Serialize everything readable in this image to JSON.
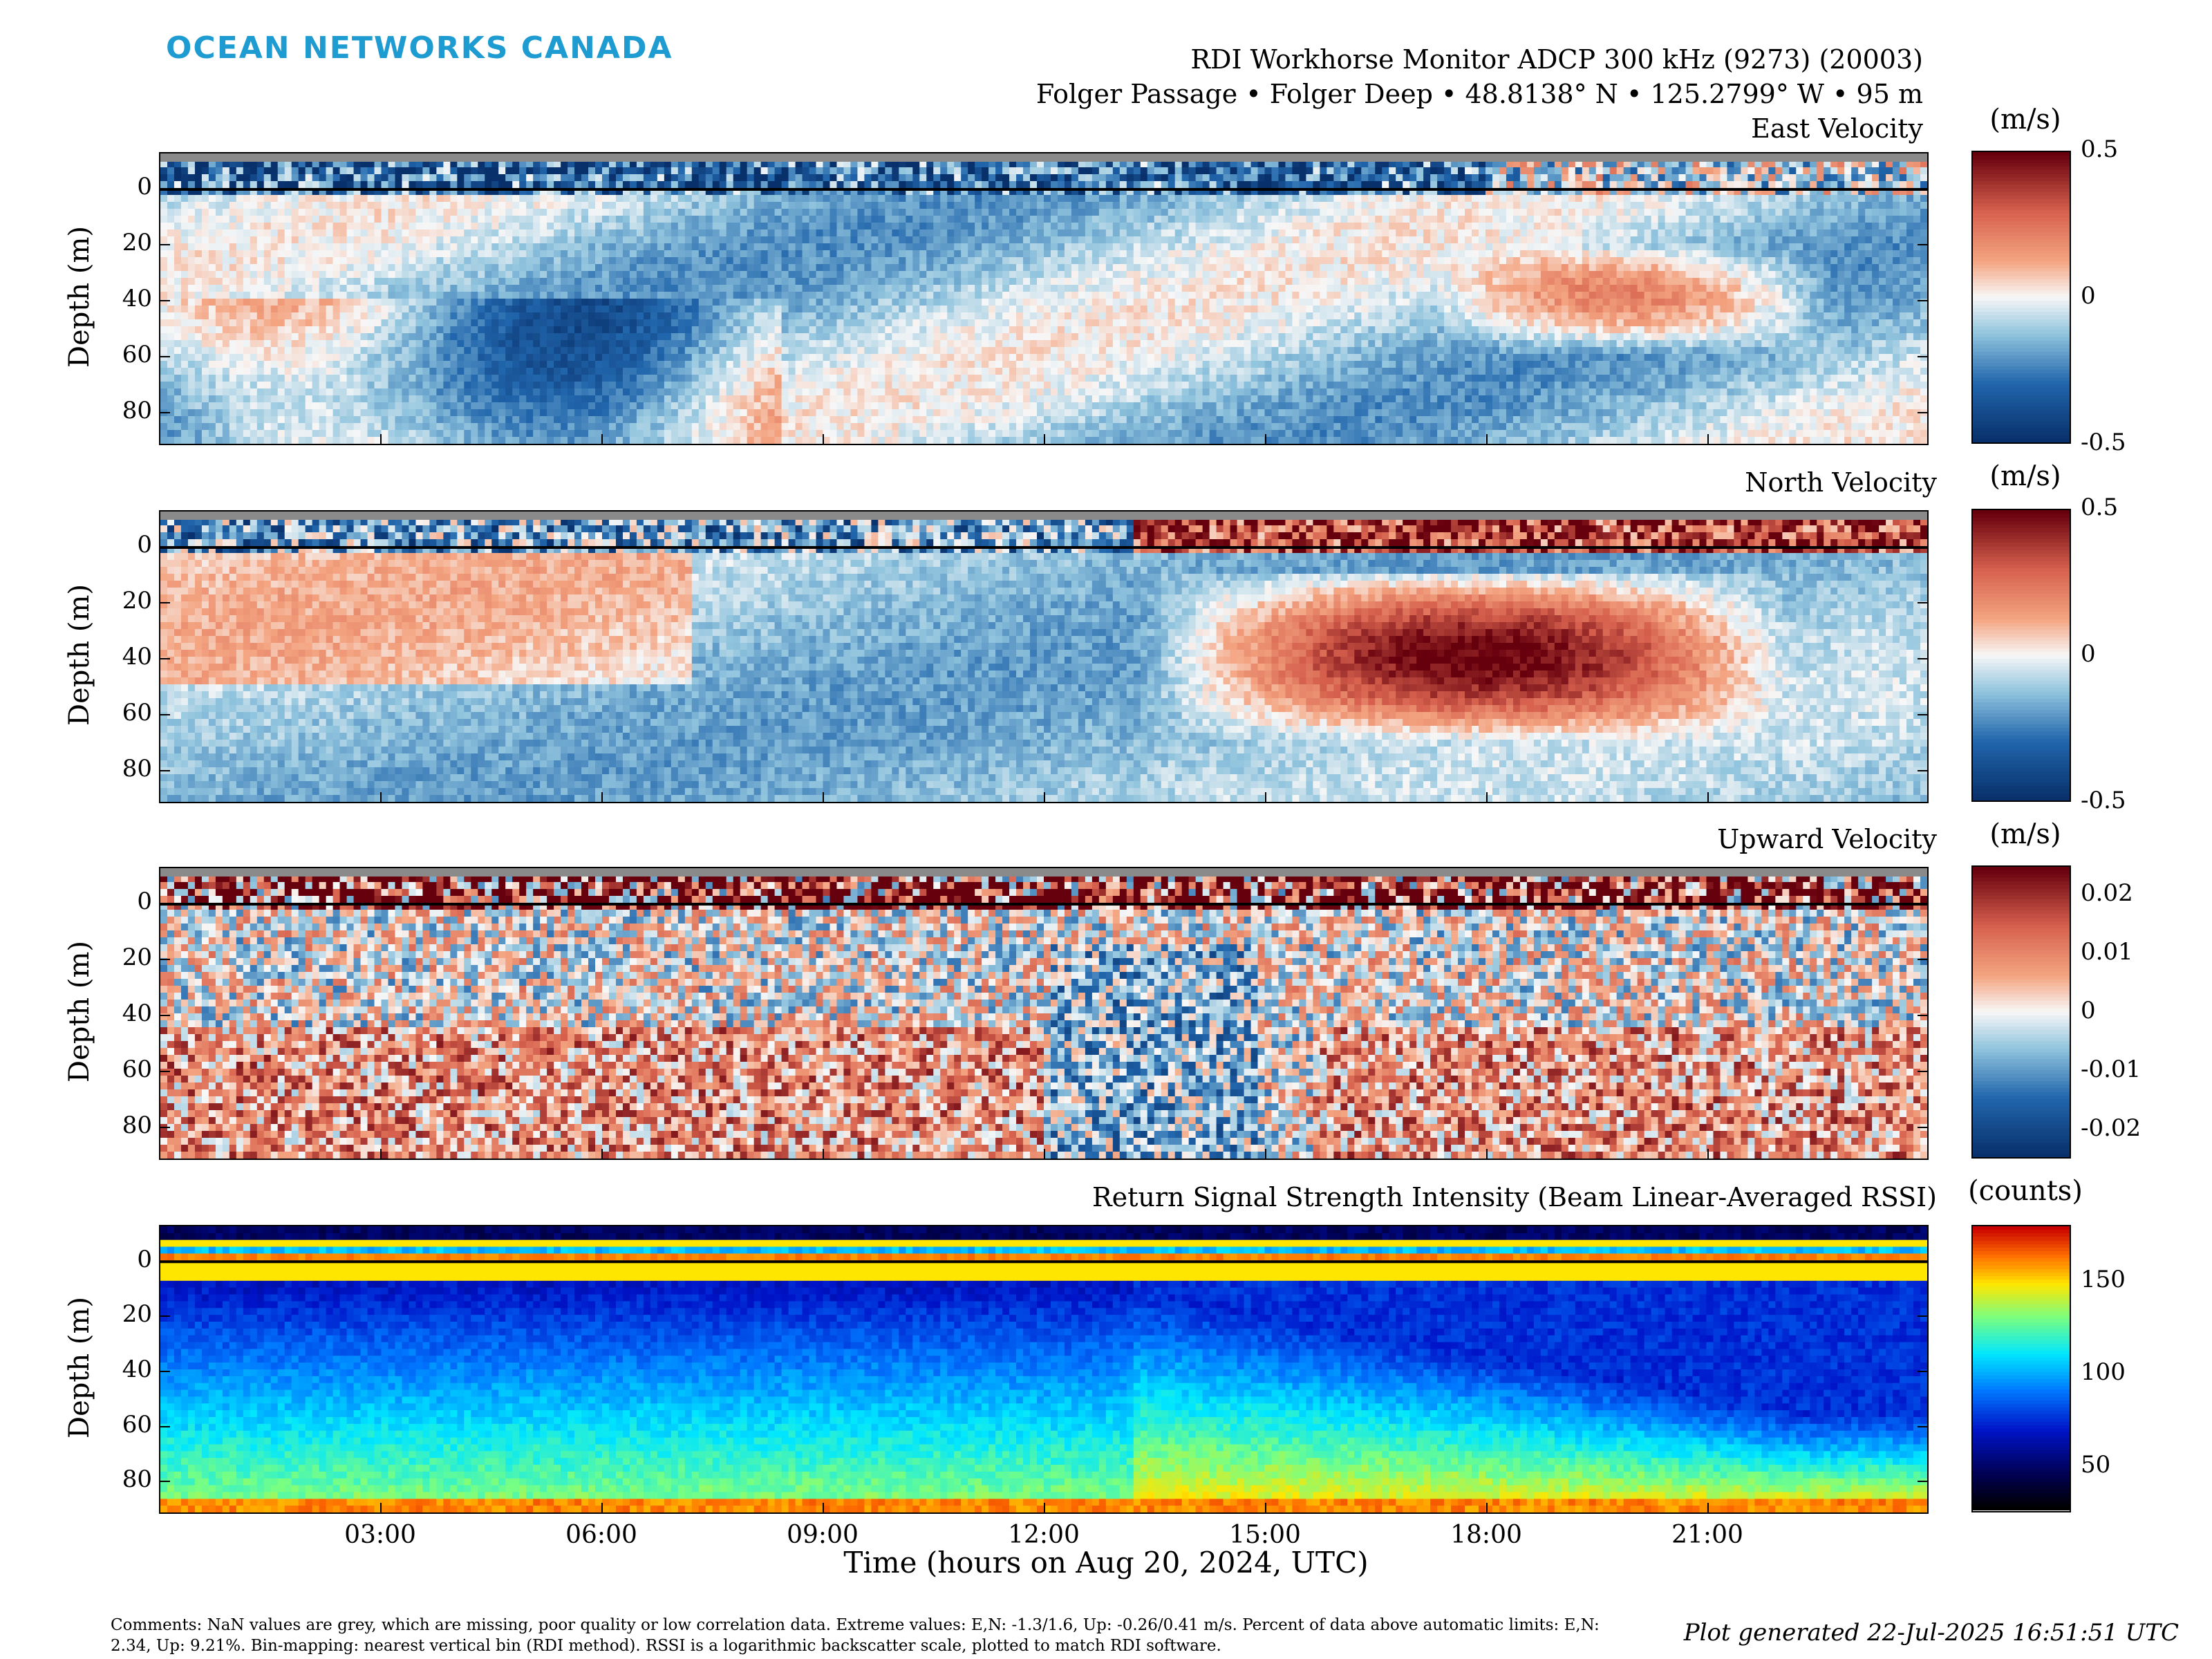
{
  "header": {
    "logo": "OCEAN NETWORKS CANADA",
    "instrument": "RDI Workhorse Monitor ADCP 300 kHz (9273) (20003)",
    "location": "Folger Passage • Folger Deep • 48.8138° N • 125.2799° W • 95 m"
  },
  "chart_data": [
    {
      "type": "heatmap",
      "title": "East Velocity",
      "ylabel": "Depth (m)",
      "yticks": [
        "0",
        "20",
        "40",
        "60",
        "80"
      ],
      "colorbar": {
        "unit": "(m/s)",
        "ticks": [
          "0.5",
          "0",
          "-0.5"
        ],
        "range": [
          -0.5,
          0.5
        ],
        "colormap": "red-blue diverging"
      }
    },
    {
      "type": "heatmap",
      "title": "North Velocity",
      "ylabel": "Depth (m)",
      "yticks": [
        "0",
        "20",
        "40",
        "60",
        "80"
      ],
      "colorbar": {
        "unit": "(m/s)",
        "ticks": [
          "0.5",
          "0",
          "-0.5"
        ],
        "range": [
          -0.5,
          0.5
        ],
        "colormap": "red-blue diverging"
      }
    },
    {
      "type": "heatmap",
      "title": "Upward Velocity",
      "ylabel": "Depth (m)",
      "yticks": [
        "0",
        "20",
        "40",
        "60",
        "80"
      ],
      "colorbar": {
        "unit": "(m/s)",
        "ticks": [
          "0.02",
          "0.01",
          "0",
          "-0.01",
          "-0.02"
        ],
        "range": [
          -0.025,
          0.025
        ],
        "colormap": "red-blue diverging"
      }
    },
    {
      "type": "heatmap",
      "title": "Return Signal Strength Intensity (Beam Linear-Averaged RSSI)",
      "ylabel": "Depth (m)",
      "yticks": [
        "0",
        "20",
        "40",
        "60",
        "80"
      ],
      "xticks": [
        "03:00",
        "06:00",
        "09:00",
        "12:00",
        "15:00",
        "18:00",
        "21:00"
      ],
      "xlabel": "Time (hours on Aug 20, 2024, UTC)",
      "colorbar": {
        "unit": "(counts)",
        "ticks": [
          "150",
          "100",
          "50"
        ],
        "range": [
          25,
          180
        ],
        "colormap": "jet"
      }
    }
  ],
  "footer": {
    "comments": "Comments: NaN values are grey, which are missing, poor quality or low correlation data. Extreme values: E,N: -1.3/1.6, Up: -0.26/0.41 m/s. Percent of data above automatic limits: E,N: 2.34, Up: 9.21%. Bin-mapping: nearest vertical bin (RDI method). RSSI is a logarithmic backscatter scale, plotted to match RDI software.",
    "generated": "Plot generated 22-Jul-2025 16:51:51 UTC"
  },
  "colors": {
    "logo": "#1e9bd0",
    "nan": "#8a8a8a"
  }
}
